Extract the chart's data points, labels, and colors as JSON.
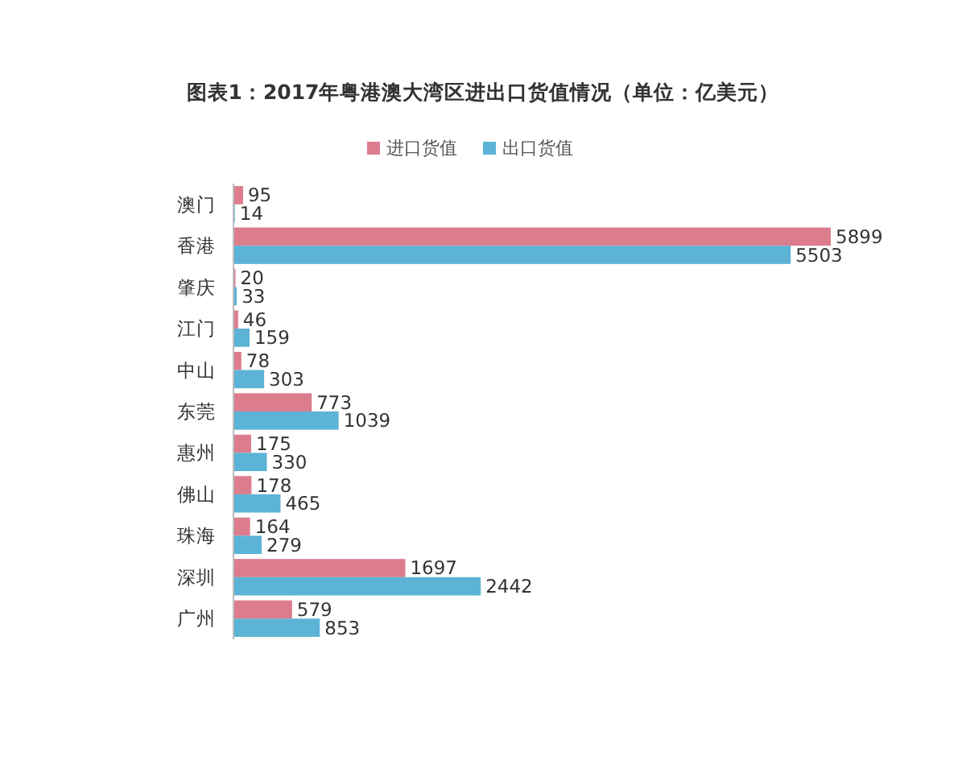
{
  "chart_data": {
    "type": "bar",
    "orientation": "horizontal",
    "title": "图表1：2017年粤港澳大湾区进出口货值情况（单位：亿美元）",
    "categories": [
      "澳门",
      "香港",
      "肇庆",
      "江门",
      "中山",
      "东莞",
      "惠州",
      "佛山",
      "珠海",
      "深圳",
      "广州"
    ],
    "series": [
      {
        "name": "进口货值",
        "color": "#dc7d8e",
        "values": [
          95,
          5899,
          20,
          46,
          78,
          773,
          175,
          178,
          164,
          1697,
          579
        ]
      },
      {
        "name": "出口货值",
        "color": "#5cb3d5",
        "values": [
          14,
          5503,
          33,
          159,
          303,
          1039,
          330,
          465,
          279,
          2442,
          853
        ]
      }
    ],
    "data_labels": true,
    "legend": "top",
    "tick_labels": "y"
  }
}
